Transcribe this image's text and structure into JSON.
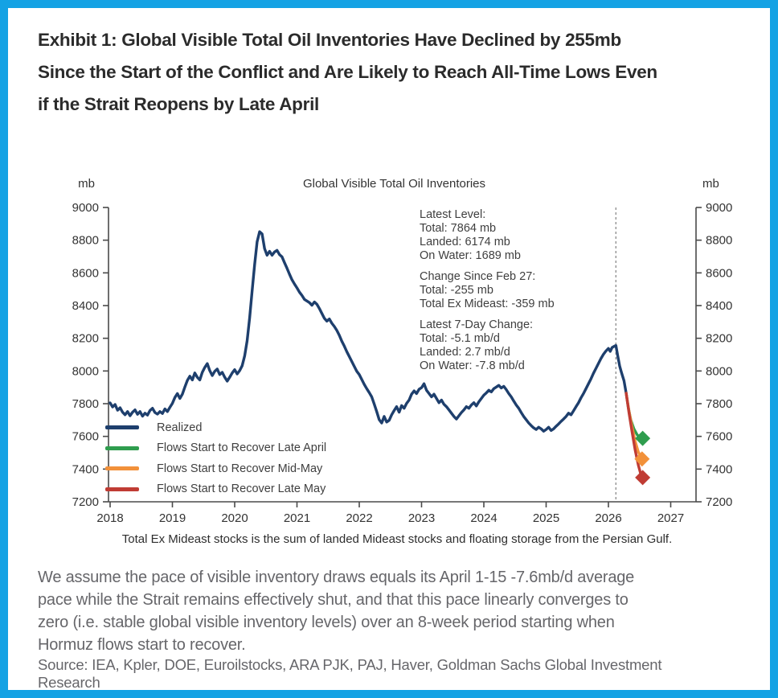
{
  "page": {
    "border_color": "#14a2e4",
    "title_color": "#2b2b2b",
    "text_color": "#66666a"
  },
  "title": {
    "lines": [
      "Exhibit 1: Global Visible Total Oil Inventories Have Declined by 255mb",
      "Since the Start of the Conflict and Are Likely to Reach All-Time Lows Even",
      "if the Strait Reopens by Late April"
    ]
  },
  "footnote": "Total Ex Mideast stocks is the sum of landed Mideast stocks and floating storage from the Persian Gulf.",
  "body": {
    "lines": [
      "We assume the pace of visible inventory draws equals its April 1-15 -7.6mb/d average",
      "pace while the Strait remains effectively shut, and that this pace linearly converges to",
      "zero (i.e. stable global visible inventory levels) over an 8-week period starting when",
      "Hormuz flows start to recover."
    ]
  },
  "source": {
    "lines": [
      "Source: IEA, Kpler, DOE, Euroilstocks, ARA PJK, PAJ, Haver, Goldman Sachs Global Investment",
      "Research"
    ]
  },
  "chart_data": {
    "type": "line",
    "title": "Global Visible Total Oil Inventories",
    "y_axis_unit_left": "mb",
    "y_axis_unit_right": "mb",
    "xlabel": "",
    "ylabel": "",
    "ylim": [
      7200,
      9000
    ],
    "yticks": [
      7200,
      7400,
      7600,
      7800,
      8000,
      8200,
      8400,
      8600,
      8800,
      9000
    ],
    "xticks": [
      2018,
      2019,
      2020,
      2021,
      2022,
      2023,
      2024,
      2025,
      2026,
      2027
    ],
    "grid": false,
    "legend_position": "lower-left",
    "event_line": {
      "x": 2026.12,
      "style": "dashed"
    },
    "annotation": {
      "latest_level": "Latest Level:\nTotal: 7864 mb\nLanded: 6174 mb\nOn Water: 1689 mb",
      "change_since_feb27": "Change Since Feb 27:\nTotal: -255 mb\nTotal Ex Mideast: -359 mb",
      "latest_7day_change": "Latest 7-Day Change:\nTotal: -5.1 mb/d\nLanded: 2.7 mb/d\nOn Water: -7.8 mb/d"
    },
    "series": [
      {
        "name": "Realized",
        "color": "#1e3f6d",
        "marker": "none",
        "points": [
          [
            2018.0,
            7805
          ],
          [
            2018.04,
            7780
          ],
          [
            2018.08,
            7795
          ],
          [
            2018.12,
            7760
          ],
          [
            2018.16,
            7775
          ],
          [
            2018.2,
            7748
          ],
          [
            2018.24,
            7732
          ],
          [
            2018.28,
            7752
          ],
          [
            2018.32,
            7726
          ],
          [
            2018.36,
            7748
          ],
          [
            2018.4,
            7762
          ],
          [
            2018.44,
            7735
          ],
          [
            2018.48,
            7752
          ],
          [
            2018.52,
            7724
          ],
          [
            2018.56,
            7742
          ],
          [
            2018.6,
            7730
          ],
          [
            2018.64,
            7758
          ],
          [
            2018.68,
            7772
          ],
          [
            2018.72,
            7746
          ],
          [
            2018.76,
            7736
          ],
          [
            2018.8,
            7752
          ],
          [
            2018.84,
            7740
          ],
          [
            2018.88,
            7768
          ],
          [
            2018.92,
            7752
          ],
          [
            2018.96,
            7778
          ],
          [
            2019.0,
            7802
          ],
          [
            2019.04,
            7838
          ],
          [
            2019.08,
            7862
          ],
          [
            2019.12,
            7832
          ],
          [
            2019.16,
            7858
          ],
          [
            2019.2,
            7902
          ],
          [
            2019.24,
            7942
          ],
          [
            2019.28,
            7968
          ],
          [
            2019.32,
            7945
          ],
          [
            2019.36,
            7988
          ],
          [
            2019.4,
            7962
          ],
          [
            2019.44,
            7945
          ],
          [
            2019.48,
            7992
          ],
          [
            2019.52,
            8022
          ],
          [
            2019.56,
            8045
          ],
          [
            2019.6,
            8002
          ],
          [
            2019.64,
            7972
          ],
          [
            2019.68,
            7998
          ],
          [
            2019.72,
            8012
          ],
          [
            2019.76,
            7978
          ],
          [
            2019.8,
            7992
          ],
          [
            2019.84,
            7962
          ],
          [
            2019.88,
            7938
          ],
          [
            2019.92,
            7962
          ],
          [
            2019.96,
            7988
          ],
          [
            2020.0,
            8008
          ],
          [
            2020.04,
            7982
          ],
          [
            2020.08,
            8002
          ],
          [
            2020.12,
            8032
          ],
          [
            2020.16,
            8092
          ],
          [
            2020.2,
            8185
          ],
          [
            2020.24,
            8325
          ],
          [
            2020.28,
            8490
          ],
          [
            2020.32,
            8650
          ],
          [
            2020.36,
            8790
          ],
          [
            2020.4,
            8852
          ],
          [
            2020.44,
            8838
          ],
          [
            2020.48,
            8748
          ],
          [
            2020.52,
            8708
          ],
          [
            2020.56,
            8732
          ],
          [
            2020.6,
            8708
          ],
          [
            2020.64,
            8728
          ],
          [
            2020.68,
            8738
          ],
          [
            2020.72,
            8712
          ],
          [
            2020.76,
            8698
          ],
          [
            2020.8,
            8662
          ],
          [
            2020.84,
            8628
          ],
          [
            2020.88,
            8592
          ],
          [
            2020.92,
            8558
          ],
          [
            2020.96,
            8532
          ],
          [
            2021.0,
            8508
          ],
          [
            2021.04,
            8482
          ],
          [
            2021.08,
            8462
          ],
          [
            2021.12,
            8438
          ],
          [
            2021.16,
            8428
          ],
          [
            2021.2,
            8418
          ],
          [
            2021.24,
            8402
          ],
          [
            2021.28,
            8422
          ],
          [
            2021.32,
            8408
          ],
          [
            2021.36,
            8382
          ],
          [
            2021.4,
            8352
          ],
          [
            2021.44,
            8322
          ],
          [
            2021.48,
            8305
          ],
          [
            2021.52,
            8318
          ],
          [
            2021.56,
            8292
          ],
          [
            2021.6,
            8272
          ],
          [
            2021.64,
            8248
          ],
          [
            2021.68,
            8218
          ],
          [
            2021.72,
            8182
          ],
          [
            2021.76,
            8152
          ],
          [
            2021.8,
            8118
          ],
          [
            2021.84,
            8088
          ],
          [
            2021.88,
            8058
          ],
          [
            2021.92,
            8028
          ],
          [
            2021.96,
            7998
          ],
          [
            2022.0,
            7978
          ],
          [
            2022.04,
            7948
          ],
          [
            2022.08,
            7918
          ],
          [
            2022.12,
            7892
          ],
          [
            2022.16,
            7868
          ],
          [
            2022.2,
            7842
          ],
          [
            2022.24,
            7798
          ],
          [
            2022.28,
            7752
          ],
          [
            2022.32,
            7702
          ],
          [
            2022.36,
            7682
          ],
          [
            2022.4,
            7722
          ],
          [
            2022.44,
            7688
          ],
          [
            2022.48,
            7698
          ],
          [
            2022.52,
            7732
          ],
          [
            2022.56,
            7758
          ],
          [
            2022.6,
            7782
          ],
          [
            2022.64,
            7748
          ],
          [
            2022.68,
            7788
          ],
          [
            2022.72,
            7772
          ],
          [
            2022.76,
            7802
          ],
          [
            2022.8,
            7822
          ],
          [
            2022.84,
            7858
          ],
          [
            2022.88,
            7878
          ],
          [
            2022.92,
            7862
          ],
          [
            2022.96,
            7888
          ],
          [
            2023.0,
            7898
          ],
          [
            2023.04,
            7922
          ],
          [
            2023.08,
            7882
          ],
          [
            2023.12,
            7862
          ],
          [
            2023.16,
            7842
          ],
          [
            2023.2,
            7858
          ],
          [
            2023.24,
            7832
          ],
          [
            2023.28,
            7806
          ],
          [
            2023.32,
            7822
          ],
          [
            2023.36,
            7796
          ],
          [
            2023.4,
            7782
          ],
          [
            2023.44,
            7762
          ],
          [
            2023.48,
            7742
          ],
          [
            2023.52,
            7722
          ],
          [
            2023.56,
            7706
          ],
          [
            2023.6,
            7726
          ],
          [
            2023.64,
            7746
          ],
          [
            2023.68,
            7762
          ],
          [
            2023.72,
            7782
          ],
          [
            2023.76,
            7772
          ],
          [
            2023.8,
            7792
          ],
          [
            2023.84,
            7806
          ],
          [
            2023.88,
            7786
          ],
          [
            2023.92,
            7812
          ],
          [
            2023.96,
            7832
          ],
          [
            2024.0,
            7852
          ],
          [
            2024.04,
            7866
          ],
          [
            2024.08,
            7882
          ],
          [
            2024.12,
            7872
          ],
          [
            2024.16,
            7892
          ],
          [
            2024.2,
            7902
          ],
          [
            2024.24,
            7912
          ],
          [
            2024.28,
            7896
          ],
          [
            2024.32,
            7906
          ],
          [
            2024.36,
            7886
          ],
          [
            2024.4,
            7862
          ],
          [
            2024.44,
            7842
          ],
          [
            2024.48,
            7816
          ],
          [
            2024.52,
            7792
          ],
          [
            2024.56,
            7772
          ],
          [
            2024.6,
            7746
          ],
          [
            2024.64,
            7722
          ],
          [
            2024.68,
            7702
          ],
          [
            2024.72,
            7682
          ],
          [
            2024.76,
            7666
          ],
          [
            2024.8,
            7652
          ],
          [
            2024.84,
            7642
          ],
          [
            2024.88,
            7656
          ],
          [
            2024.92,
            7646
          ],
          [
            2024.96,
            7632
          ],
          [
            2025.0,
            7642
          ],
          [
            2025.04,
            7656
          ],
          [
            2025.08,
            7636
          ],
          [
            2025.12,
            7646
          ],
          [
            2025.16,
            7662
          ],
          [
            2025.2,
            7676
          ],
          [
            2025.24,
            7692
          ],
          [
            2025.28,
            7706
          ],
          [
            2025.32,
            7722
          ],
          [
            2025.36,
            7742
          ],
          [
            2025.4,
            7732
          ],
          [
            2025.44,
            7756
          ],
          [
            2025.48,
            7782
          ],
          [
            2025.52,
            7806
          ],
          [
            2025.56,
            7836
          ],
          [
            2025.6,
            7862
          ],
          [
            2025.64,
            7892
          ],
          [
            2025.68,
            7922
          ],
          [
            2025.72,
            7952
          ],
          [
            2025.76,
            7986
          ],
          [
            2025.8,
            8016
          ],
          [
            2025.84,
            8046
          ],
          [
            2025.88,
            8076
          ],
          [
            2025.92,
            8102
          ],
          [
            2025.96,
            8122
          ],
          [
            2026.0,
            8138
          ],
          [
            2026.03,
            8120
          ],
          [
            2026.06,
            8144
          ],
          [
            2026.09,
            8150
          ],
          [
            2026.12,
            8156
          ],
          [
            2026.15,
            8092
          ],
          [
            2026.18,
            8030
          ],
          [
            2026.21,
            7990
          ],
          [
            2026.25,
            7940
          ],
          [
            2026.285,
            7864
          ]
        ]
      },
      {
        "name": "Flows Start to Recover Late April",
        "color": "#2f9d4e",
        "marker": "diamond",
        "points": [
          [
            2026.285,
            7864
          ],
          [
            2026.32,
            7775
          ],
          [
            2026.36,
            7700
          ],
          [
            2026.41,
            7645
          ],
          [
            2026.46,
            7610
          ],
          [
            2026.51,
            7592
          ],
          [
            2026.55,
            7588
          ]
        ]
      },
      {
        "name": "Flows Start to Recover Mid-May",
        "color": "#f2913a",
        "marker": "diamond",
        "points": [
          [
            2026.285,
            7864
          ],
          [
            2026.33,
            7755
          ],
          [
            2026.38,
            7655
          ],
          [
            2026.43,
            7570
          ],
          [
            2026.48,
            7505
          ],
          [
            2026.52,
            7475
          ],
          [
            2026.54,
            7462
          ]
        ]
      },
      {
        "name": "Flows Start to Recover Late May",
        "color": "#c03c34",
        "marker": "diamond",
        "points": [
          [
            2026.285,
            7864
          ],
          [
            2026.33,
            7745
          ],
          [
            2026.38,
            7625
          ],
          [
            2026.43,
            7515
          ],
          [
            2026.48,
            7425
          ],
          [
            2026.52,
            7368
          ],
          [
            2026.55,
            7348
          ]
        ]
      }
    ]
  }
}
